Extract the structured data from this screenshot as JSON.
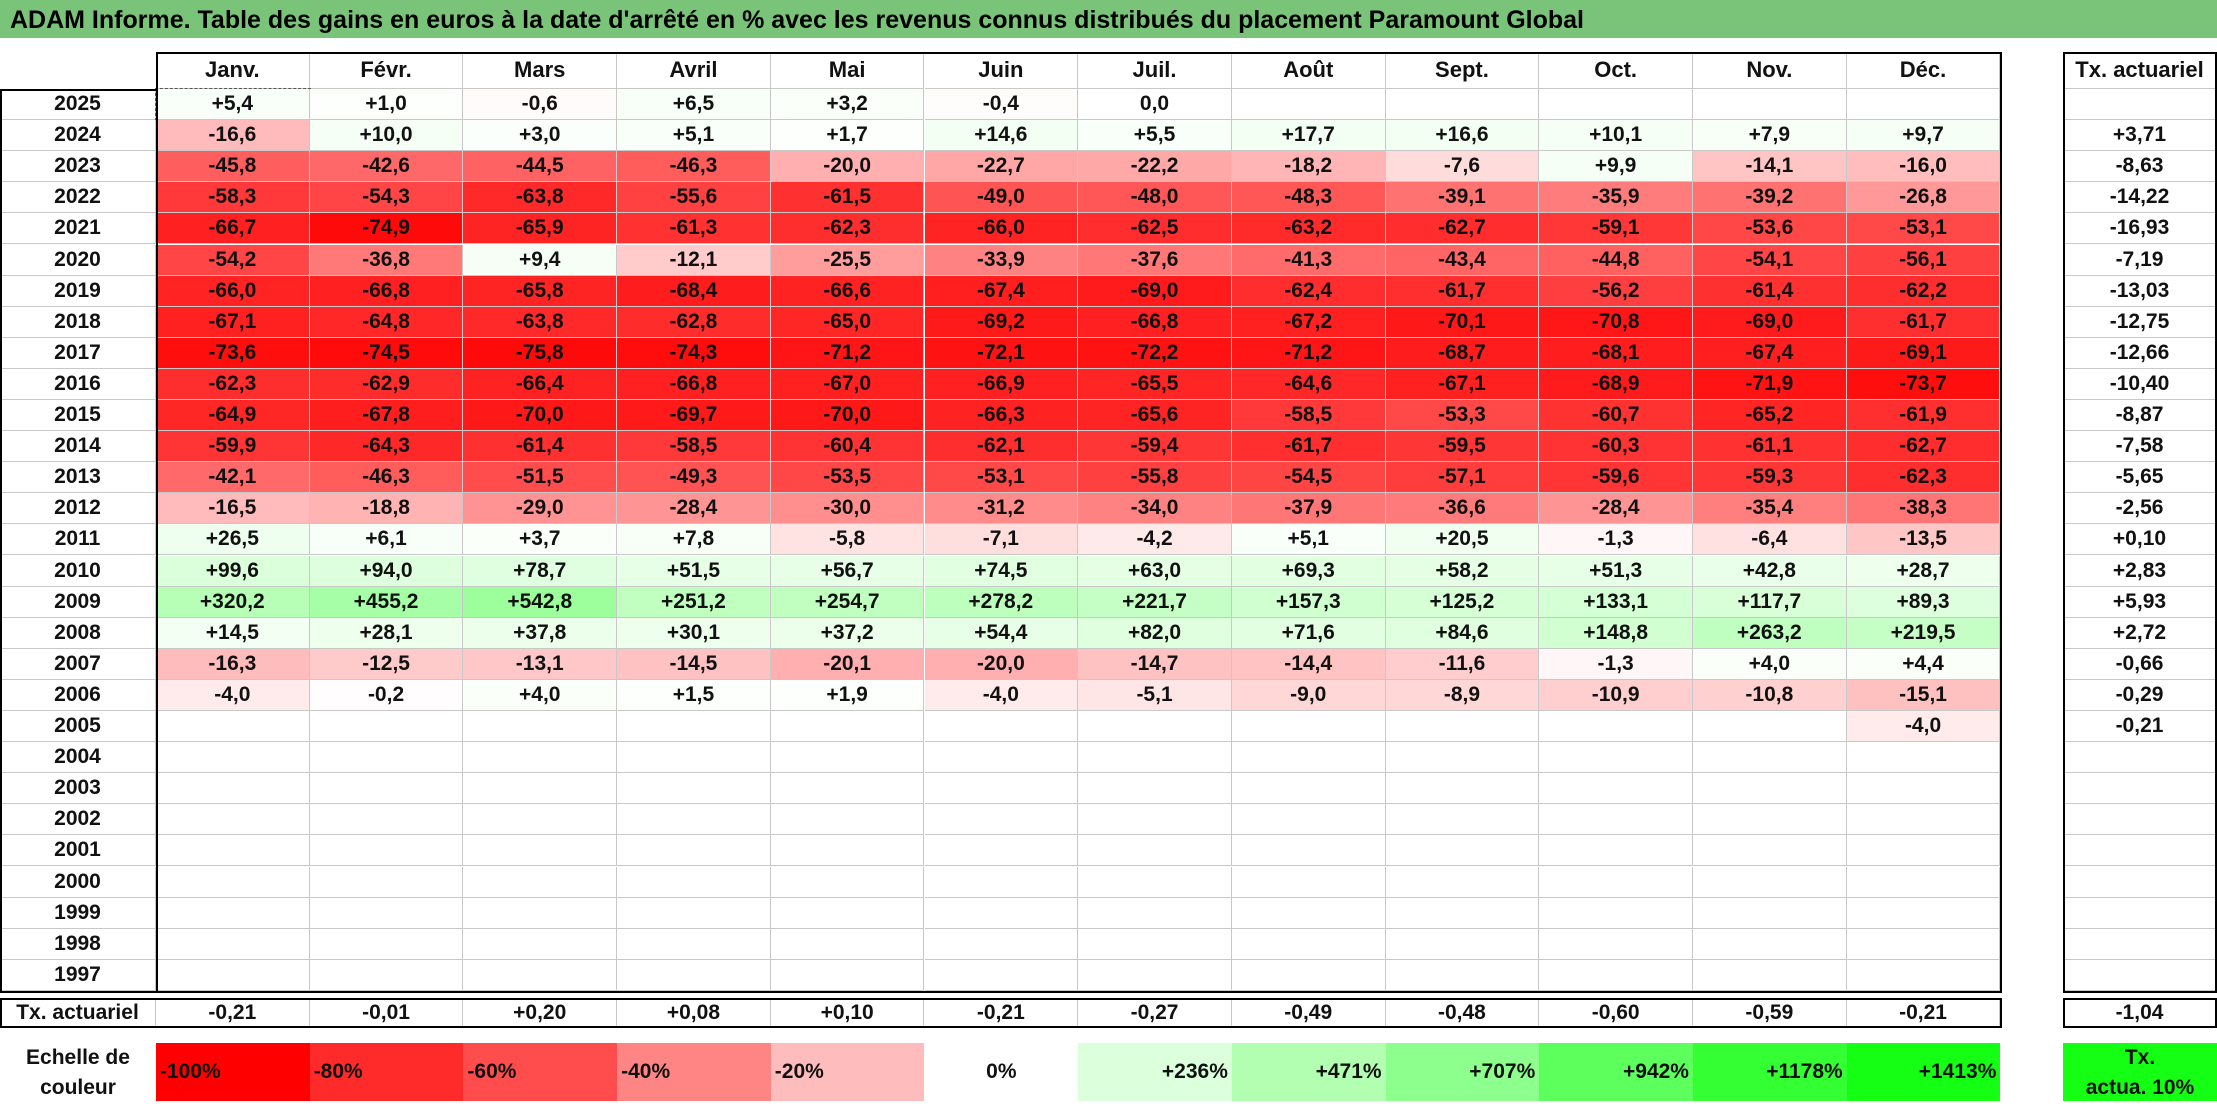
{
  "title": "ADAM Informe. Table des gains en euros à la date d'arrêté en % avec les revenus connus distribués du placement Paramount Global",
  "chart_data": {
    "type": "heatmap",
    "title": "ADAM Informe. Table des gains en euros à la date d'arrêté en % avec les revenus connus distribués du placement Paramount Global",
    "months": [
      "Janv.",
      "Févr.",
      "Mars",
      "Avril",
      "Mai",
      "Juin",
      "Juil.",
      "Août",
      "Sept.",
      "Oct.",
      "Nov.",
      "Déc."
    ],
    "annual_header": "Tx. actuariel",
    "rows": [
      {
        "year": "2025",
        "values": [
          "+5,4",
          "+1,0",
          "-0,6",
          "+6,5",
          "+3,2",
          "-0,4",
          "0,0",
          "",
          "",
          "",
          "",
          ""
        ],
        "annual": ""
      },
      {
        "year": "2024",
        "values": [
          "-16,6",
          "+10,0",
          "+3,0",
          "+5,1",
          "+1,7",
          "+14,6",
          "+5,5",
          "+17,7",
          "+16,6",
          "+10,1",
          "+7,9",
          "+9,7"
        ],
        "annual": "+3,71"
      },
      {
        "year": "2023",
        "values": [
          "-45,8",
          "-42,6",
          "-44,5",
          "-46,3",
          "-20,0",
          "-22,7",
          "-22,2",
          "-18,2",
          "-7,6",
          "+9,9",
          "-14,1",
          "-16,0"
        ],
        "annual": "-8,63"
      },
      {
        "year": "2022",
        "values": [
          "-58,3",
          "-54,3",
          "-63,8",
          "-55,6",
          "-61,5",
          "-49,0",
          "-48,0",
          "-48,3",
          "-39,1",
          "-35,9",
          "-39,2",
          "-26,8"
        ],
        "annual": "-14,22"
      },
      {
        "year": "2021",
        "values": [
          "-66,7",
          "-74,9",
          "-65,9",
          "-61,3",
          "-62,3",
          "-66,0",
          "-62,5",
          "-63,2",
          "-62,7",
          "-59,1",
          "-53,6",
          "-53,1"
        ],
        "annual": "-16,93"
      },
      {
        "year": "2020",
        "values": [
          "-54,2",
          "-36,8",
          "+9,4",
          "-12,1",
          "-25,5",
          "-33,9",
          "-37,6",
          "-41,3",
          "-43,4",
          "-44,8",
          "-54,1",
          "-56,1"
        ],
        "annual": "-7,19"
      },
      {
        "year": "2019",
        "values": [
          "-66,0",
          "-66,8",
          "-65,8",
          "-68,4",
          "-66,6",
          "-67,4",
          "-69,0",
          "-62,4",
          "-61,7",
          "-56,2",
          "-61,4",
          "-62,2"
        ],
        "annual": "-13,03"
      },
      {
        "year": "2018",
        "values": [
          "-67,1",
          "-64,8",
          "-63,8",
          "-62,8",
          "-65,0",
          "-69,2",
          "-66,8",
          "-67,2",
          "-70,1",
          "-70,8",
          "-69,0",
          "-61,7"
        ],
        "annual": "-12,75"
      },
      {
        "year": "2017",
        "values": [
          "-73,6",
          "-74,5",
          "-75,8",
          "-74,3",
          "-71,2",
          "-72,1",
          "-72,2",
          "-71,2",
          "-68,7",
          "-68,1",
          "-67,4",
          "-69,1"
        ],
        "annual": "-12,66"
      },
      {
        "year": "2016",
        "values": [
          "-62,3",
          "-62,9",
          "-66,4",
          "-66,8",
          "-67,0",
          "-66,9",
          "-65,5",
          "-64,6",
          "-67,1",
          "-68,9",
          "-71,9",
          "-73,7"
        ],
        "annual": "-10,40"
      },
      {
        "year": "2015",
        "values": [
          "-64,9",
          "-67,8",
          "-70,0",
          "-69,7",
          "-70,0",
          "-66,3",
          "-65,6",
          "-58,5",
          "-53,3",
          "-60,7",
          "-65,2",
          "-61,9"
        ],
        "annual": "-8,87"
      },
      {
        "year": "2014",
        "values": [
          "-59,9",
          "-64,3",
          "-61,4",
          "-58,5",
          "-60,4",
          "-62,1",
          "-59,4",
          "-61,7",
          "-59,5",
          "-60,3",
          "-61,1",
          "-62,7"
        ],
        "annual": "-7,58"
      },
      {
        "year": "2013",
        "values": [
          "-42,1",
          "-46,3",
          "-51,5",
          "-49,3",
          "-53,5",
          "-53,1",
          "-55,8",
          "-54,5",
          "-57,1",
          "-59,6",
          "-59,3",
          "-62,3"
        ],
        "annual": "-5,65"
      },
      {
        "year": "2012",
        "values": [
          "-16,5",
          "-18,8",
          "-29,0",
          "-28,4",
          "-30,0",
          "-31,2",
          "-34,0",
          "-37,9",
          "-36,6",
          "-28,4",
          "-35,4",
          "-38,3"
        ],
        "annual": "-2,56"
      },
      {
        "year": "2011",
        "values": [
          "+26,5",
          "+6,1",
          "+3,7",
          "+7,8",
          "-5,8",
          "-7,1",
          "-4,2",
          "+5,1",
          "+20,5",
          "-1,3",
          "-6,4",
          "-13,5"
        ],
        "annual": "+0,10"
      },
      {
        "year": "2010",
        "values": [
          "+99,6",
          "+94,0",
          "+78,7",
          "+51,5",
          "+56,7",
          "+74,5",
          "+63,0",
          "+69,3",
          "+58,2",
          "+51,3",
          "+42,8",
          "+28,7"
        ],
        "annual": "+2,83"
      },
      {
        "year": "2009",
        "values": [
          "+320,2",
          "+455,2",
          "+542,8",
          "+251,2",
          "+254,7",
          "+278,2",
          "+221,7",
          "+157,3",
          "+125,2",
          "+133,1",
          "+117,7",
          "+89,3"
        ],
        "annual": "+5,93"
      },
      {
        "year": "2008",
        "values": [
          "+14,5",
          "+28,1",
          "+37,8",
          "+30,1",
          "+37,2",
          "+54,4",
          "+82,0",
          "+71,6",
          "+84,6",
          "+148,8",
          "+263,2",
          "+219,5"
        ],
        "annual": "+2,72"
      },
      {
        "year": "2007",
        "values": [
          "-16,3",
          "-12,5",
          "-13,1",
          "-14,5",
          "-20,1",
          "-20,0",
          "-14,7",
          "-14,4",
          "-11,6",
          "-1,3",
          "+4,0",
          "+4,4"
        ],
        "annual": "-0,66"
      },
      {
        "year": "2006",
        "values": [
          "-4,0",
          "-0,2",
          "+4,0",
          "+1,5",
          "+1,9",
          "-4,0",
          "-5,1",
          "-9,0",
          "-8,9",
          "-10,9",
          "-10,8",
          "-15,1"
        ],
        "annual": "-0,29"
      },
      {
        "year": "2005",
        "values": [
          "",
          "",
          "",
          "",
          "",
          "",
          "",
          "",
          "",
          "",
          "",
          "-4,0"
        ],
        "annual": "-0,21"
      },
      {
        "year": "2004",
        "values": [
          "",
          "",
          "",
          "",
          "",
          "",
          "",
          "",
          "",
          "",
          "",
          ""
        ],
        "annual": ""
      },
      {
        "year": "2003",
        "values": [
          "",
          "",
          "",
          "",
          "",
          "",
          "",
          "",
          "",
          "",
          "",
          ""
        ],
        "annual": ""
      },
      {
        "year": "2002",
        "values": [
          "",
          "",
          "",
          "",
          "",
          "",
          "",
          "",
          "",
          "",
          "",
          ""
        ],
        "annual": ""
      },
      {
        "year": "2001",
        "values": [
          "",
          "",
          "",
          "",
          "",
          "",
          "",
          "",
          "",
          "",
          "",
          ""
        ],
        "annual": ""
      },
      {
        "year": "2000",
        "values": [
          "",
          "",
          "",
          "",
          "",
          "",
          "",
          "",
          "",
          "",
          "",
          ""
        ],
        "annual": ""
      },
      {
        "year": "1999",
        "values": [
          "",
          "",
          "",
          "",
          "",
          "",
          "",
          "",
          "",
          "",
          "",
          ""
        ],
        "annual": ""
      },
      {
        "year": "1998",
        "values": [
          "",
          "",
          "",
          "",
          "",
          "",
          "",
          "",
          "",
          "",
          "",
          ""
        ],
        "annual": ""
      },
      {
        "year": "1997",
        "values": [
          "",
          "",
          "",
          "",
          "",
          "",
          "",
          "",
          "",
          "",
          "",
          ""
        ],
        "annual": ""
      }
    ],
    "footer": {
      "label": "Tx. actuariel",
      "values": [
        "-0,21",
        "-0,01",
        "+0,20",
        "+0,08",
        "+0,10",
        "-0,21",
        "-0,27",
        "-0,49",
        "-0,48",
        "-0,60",
        "-0,59",
        "-0,21"
      ],
      "annual": "-1,04"
    },
    "scale": {
      "label_line1": "Echelle de",
      "label_line2": "couleur",
      "steps": [
        {
          "label": "-100%",
          "value": -100,
          "color": "#ff0000"
        },
        {
          "label": "-80%",
          "value": -80,
          "color": "#ff2b2b"
        },
        {
          "label": "-60%",
          "value": -60,
          "color": "#ff4d4d"
        },
        {
          "label": "-40%",
          "value": -40,
          "color": "#ff8585"
        },
        {
          "label": "-20%",
          "value": -20,
          "color": "#ffbcbc"
        },
        {
          "label": "0%",
          "value": 0,
          "color": "#ffffff"
        },
        {
          "label": "+236%",
          "value": 236,
          "color": "#dcffdc"
        },
        {
          "label": "+471%",
          "value": 471,
          "color": "#b2ffb2"
        },
        {
          "label": "+707%",
          "value": 707,
          "color": "#8cff8c"
        },
        {
          "label": "+942%",
          "value": 942,
          "color": "#5cff5c"
        },
        {
          "label": "+1178%",
          "value": 1178,
          "color": "#33ff33"
        },
        {
          "label": "+1413%",
          "value": 1413,
          "color": "#14ff14"
        }
      ],
      "annual_label_line1": "Tx.",
      "annual_label_line2": "actua. 10%",
      "annual_color": "#14ff14"
    }
  }
}
